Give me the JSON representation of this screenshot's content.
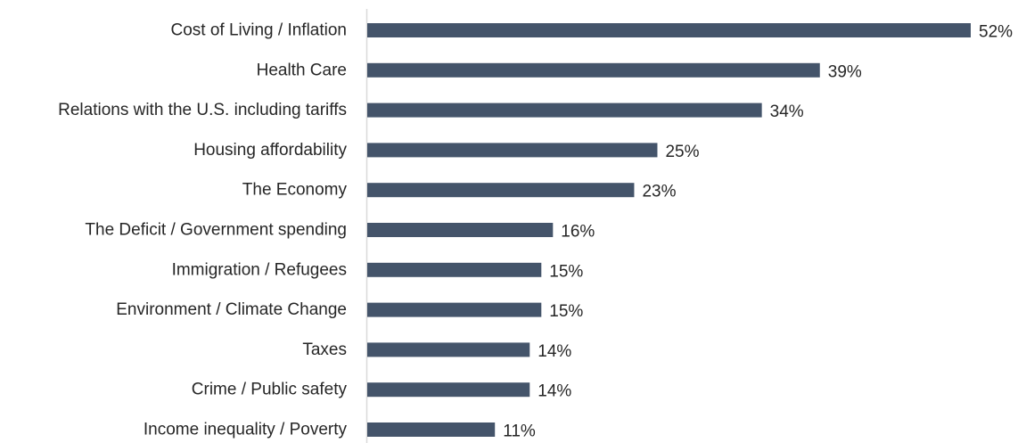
{
  "chart_data": {
    "type": "bar",
    "orientation": "horizontal",
    "title": "",
    "xlabel": "",
    "ylabel": "",
    "categories": [
      "Cost of Living / Inflation",
      "Health Care",
      "Relations with the U.S. including tariffs",
      "Housing affordability",
      "The Economy",
      "The Deficit / Government spending",
      "Immigration / Refugees",
      "Environment / Climate Change",
      "Taxes",
      "Crime / Public safety",
      "Income inequality / Poverty"
    ],
    "values": [
      52,
      39,
      34,
      25,
      23,
      16,
      15,
      15,
      14,
      14,
      11
    ],
    "value_labels": [
      "52%",
      "39%",
      "34%",
      "25%",
      "23%",
      "16%",
      "15%",
      "15%",
      "14%",
      "14%",
      "11%"
    ],
    "unit": "%",
    "xlim": [
      0,
      54
    ],
    "grid": false,
    "legend": "none",
    "bar_color": "#44546a",
    "axis_color": "#d9d9d9",
    "text_color": "#262626"
  }
}
